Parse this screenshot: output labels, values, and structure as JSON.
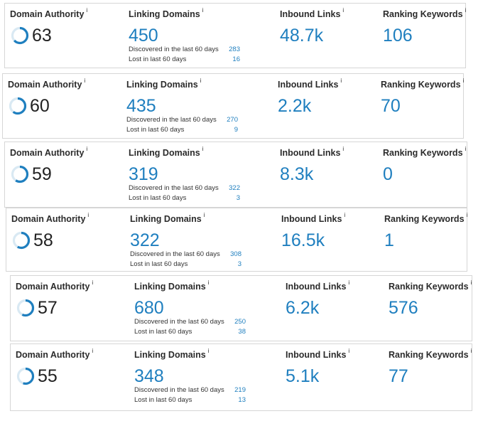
{
  "labels": {
    "domain_authority": "Domain Authority",
    "linking_domains": "Linking Domains",
    "inbound_links": "Inbound Links",
    "ranking_keywords": "Ranking Keywords",
    "info": "i",
    "discovered": "Discovered in the last 60 days",
    "lost": "Lost in last 60 days"
  },
  "colors": {
    "accent": "#1f7fbf",
    "ring_track": "#d9e9f3"
  },
  "icons": {
    "info": "info-icon",
    "ring": "progress-ring-icon"
  },
  "cards": [
    {
      "da": "63",
      "da_fraction": 0.63,
      "linking": "450",
      "discovered": "283",
      "lost": "16",
      "inbound": "48.7k",
      "keywords": "106"
    },
    {
      "da": "60",
      "da_fraction": 0.6,
      "linking": "435",
      "discovered": "270",
      "lost": "9",
      "inbound": "2.2k",
      "keywords": "70"
    },
    {
      "da": "59",
      "da_fraction": 0.59,
      "linking": "319",
      "discovered": "322",
      "lost": "3",
      "inbound": "8.3k",
      "keywords": "0"
    },
    {
      "da": "58",
      "da_fraction": 0.58,
      "linking": "322",
      "discovered": "308",
      "lost": "3",
      "inbound": "16.5k",
      "keywords": "1"
    },
    {
      "da": "57",
      "da_fraction": 0.57,
      "linking": "680",
      "discovered": "250",
      "lost": "38",
      "inbound": "6.2k",
      "keywords": "576"
    },
    {
      "da": "55",
      "da_fraction": 0.55,
      "linking": "348",
      "discovered": "219",
      "lost": "13",
      "inbound": "5.1k",
      "keywords": "77"
    }
  ]
}
